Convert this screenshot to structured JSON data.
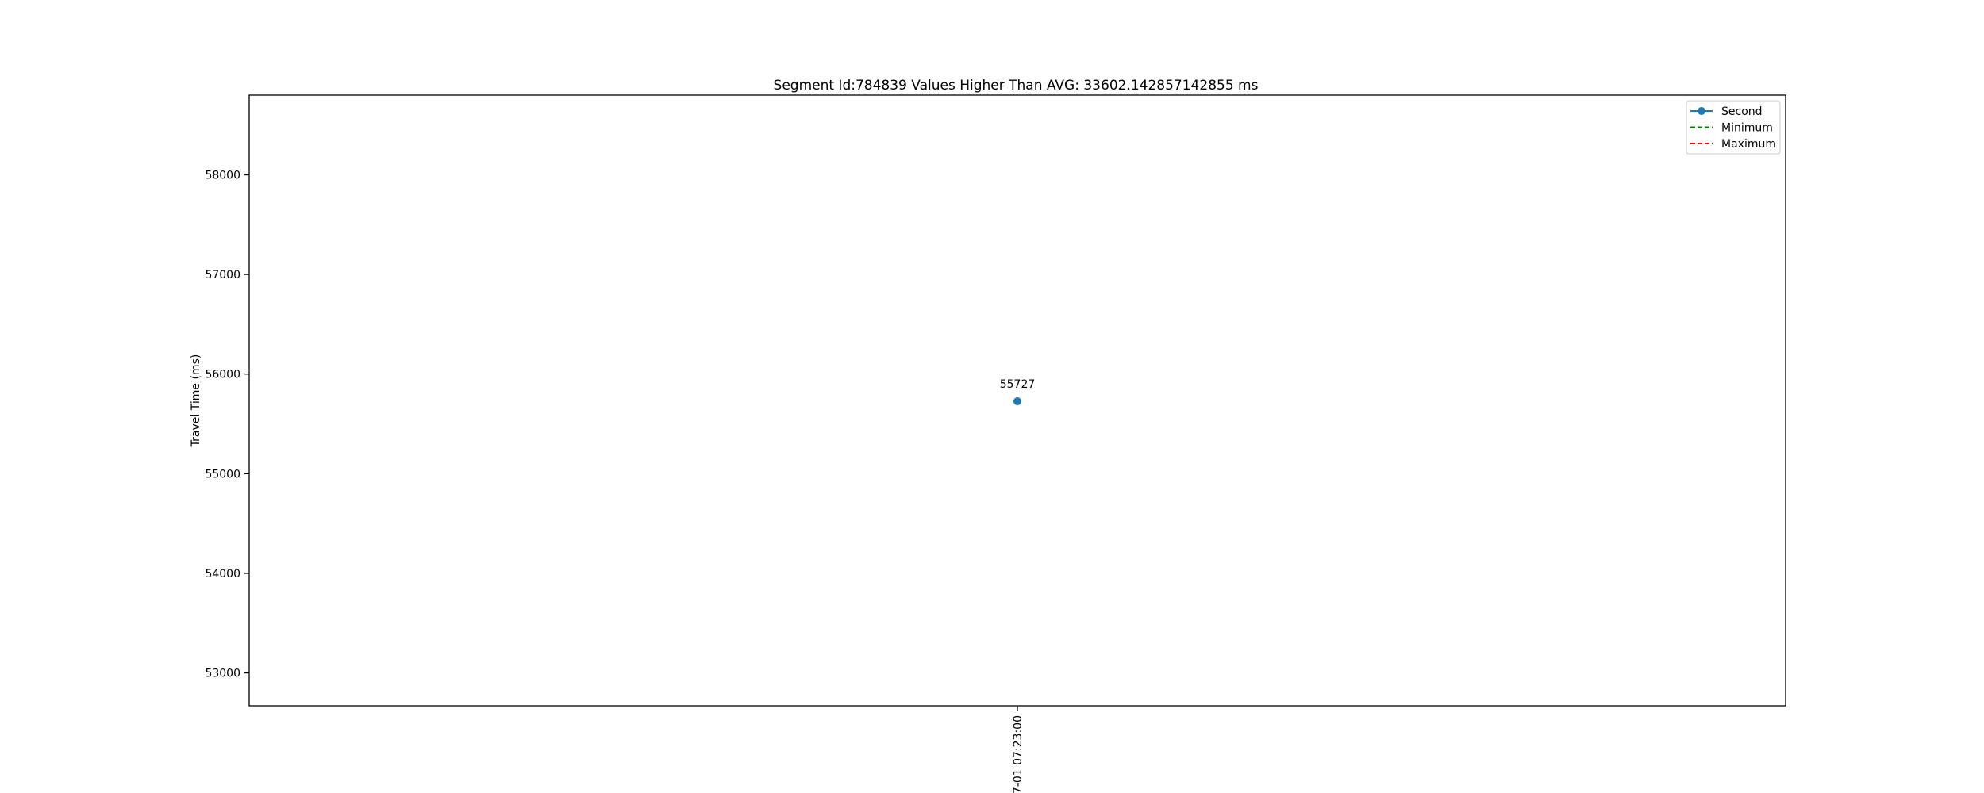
{
  "chart_data": {
    "type": "line",
    "title": "Segment Id:784839 Values Higher Than AVG: 33602.142857142855 ms",
    "xlabel": "",
    "ylabel": "Travel Time (ms)",
    "ylim": [
      52670,
      58800
    ],
    "yticks": [
      53000,
      54000,
      55000,
      56000,
      57000,
      58000
    ],
    "xtick_labels": [
      "7-01 07:23:00"
    ],
    "grid": false,
    "legend_position": "top-right",
    "series": [
      {
        "name": "Second",
        "color": "#1f77b4",
        "style": "solid-marker",
        "x": [
          "7-01 07:23:00"
        ],
        "values": [
          55727
        ],
        "point_labels": [
          "55727"
        ]
      },
      {
        "name": "Minimum",
        "color": "#008000",
        "style": "dashed",
        "values": []
      },
      {
        "name": "Maximum",
        "color": "#ff0000",
        "style": "dashed",
        "values": []
      }
    ]
  }
}
